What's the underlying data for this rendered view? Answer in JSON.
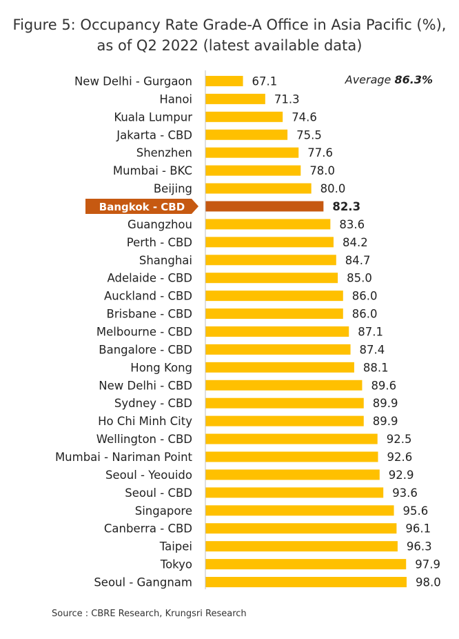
{
  "title_line1": "Figure 5: Occupancy Rate Grade-A Office in Asia Pacific (%),",
  "title_line2": "as of Q2 2022 (latest available data)",
  "average_label": "Average",
  "average_value": "86.3%",
  "source": "Source : CBRE Research, Krungsri Research",
  "colors": {
    "bar": "#FFC000",
    "highlight": "#C65911",
    "axis": "#BFBFBF"
  },
  "chart_data": {
    "type": "bar",
    "orientation": "horizontal",
    "xlim": [
      60,
      100
    ],
    "highlight_category": "Bangkok  - CBD",
    "categories": [
      "New Delhi - Gurgaon",
      "Hanoi",
      "Kuala Lumpur",
      "Jakarta - CBD",
      "Shenzhen",
      "Mumbai - BKC",
      "Beijing",
      "Bangkok  - CBD",
      "Guangzhou",
      "Perth - CBD",
      "Shanghai",
      "Adelaide - CBD",
      "Auckland - CBD",
      "Brisbane - CBD",
      "Melbourne - CBD",
      "Bangalore - CBD",
      "Hong Kong",
      "New Delhi - CBD",
      "Sydney - CBD",
      "Ho Chi Minh City",
      "Wellington - CBD",
      "Mumbai - Nariman Point",
      "Seoul - Yeouido",
      "Seoul - CBD",
      "Singapore",
      "Canberra - CBD",
      "Taipei",
      "Tokyo",
      "Seoul - Gangnam"
    ],
    "values": [
      67.1,
      71.3,
      74.6,
      75.5,
      77.6,
      78.0,
      80.0,
      82.3,
      83.6,
      84.2,
      84.7,
      85.0,
      86.0,
      86.0,
      87.1,
      87.4,
      88.1,
      89.6,
      89.9,
      89.9,
      92.5,
      92.6,
      92.9,
      93.6,
      95.6,
      96.1,
      96.3,
      97.9,
      98.0
    ],
    "value_labels": [
      "67.1",
      "71.3",
      "74.6",
      "75.5",
      "77.6",
      "78.0",
      "80.0",
      "82.3",
      "83.6",
      "84.2",
      "84.7",
      "85.0",
      "86.0",
      "86.0",
      "87.1",
      "87.4",
      "88.1",
      "89.6",
      "89.9",
      "89.9",
      "92.5",
      "92.6",
      "92.9",
      "93.6",
      "95.6",
      "96.1",
      "96.3",
      "97.9",
      "98.0"
    ]
  }
}
